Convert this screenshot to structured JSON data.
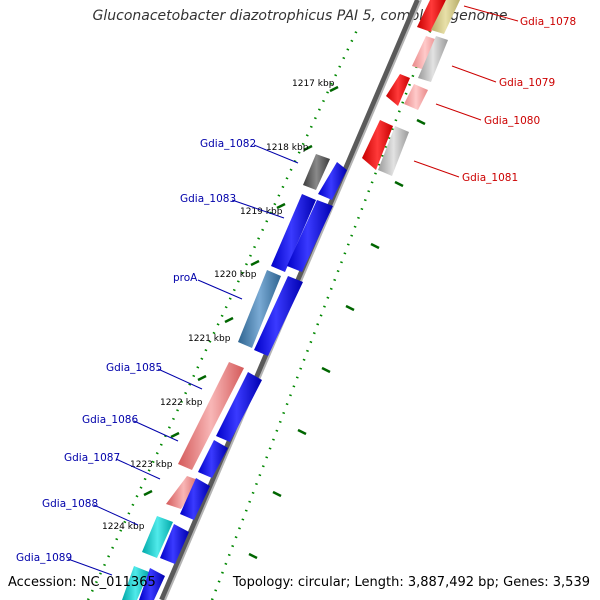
{
  "title": "Gluconacetobacter diazotrophicus PAI 5, complete genome",
  "footer": {
    "accession": "Accession: NC_011365",
    "topology": "Topology: circular; Length: 3,887,492 bp; Genes: 3,539"
  },
  "colors": {
    "forward_label": "#0000aa",
    "reverse_label": "#cc0000",
    "tick": "#006600",
    "backbone": "#888888",
    "cds_blue": "#0000ee",
    "cds_red": "#ee0000"
  },
  "ticks": [
    {
      "label": "1217 kbp"
    },
    {
      "label": "1218 kbp"
    },
    {
      "label": "1219 kbp"
    },
    {
      "label": "1220 kbp"
    },
    {
      "label": "1221 kbp"
    },
    {
      "label": "1222 kbp"
    },
    {
      "label": "1223 kbp"
    },
    {
      "label": "1224 kbp"
    }
  ],
  "forward_genes": [
    {
      "name": "Gdia_1082"
    },
    {
      "name": "Gdia_1083"
    },
    {
      "name": "proA"
    },
    {
      "name": "Gdia_1085"
    },
    {
      "name": "Gdia_1086"
    },
    {
      "name": "Gdia_1087"
    },
    {
      "name": "Gdia_1088"
    },
    {
      "name": "Gdia_1089"
    }
  ],
  "reverse_genes": [
    {
      "name": "Gdia_1078"
    },
    {
      "name": "Gdia_1079"
    },
    {
      "name": "Gdia_1080"
    },
    {
      "name": "Gdia_1081"
    }
  ]
}
